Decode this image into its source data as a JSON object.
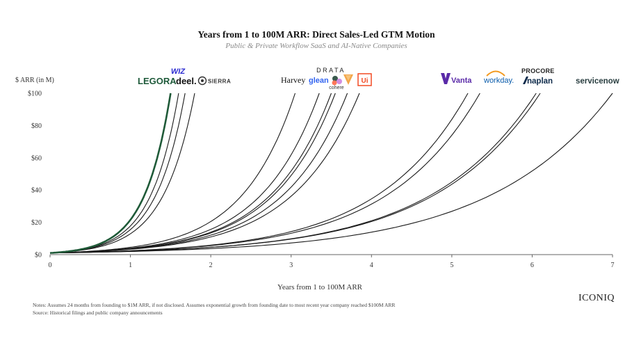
{
  "chart_data": {
    "type": "line",
    "title": "Years from 1 to 100M ARR: Direct Sales-Led GTM Motion",
    "subtitle": "Public & Private Workflow SaaS and AI-Native Companies",
    "xlabel": "Years from 1 to 100M ARR",
    "ylabel": "$ ARR (in M)",
    "xlim": [
      0,
      7
    ],
    "ylim": [
      0,
      100
    ],
    "x_ticks": [
      "0",
      "1",
      "2",
      "3",
      "4",
      "5",
      "6",
      "7"
    ],
    "y_ticks": [
      "$0",
      "$20",
      "$40",
      "$60",
      "$80",
      "$100"
    ],
    "start_value": 1,
    "series": [
      {
        "name": "Wiz",
        "years_to_100m": 1.5,
        "highlight": true
      },
      {
        "name": "Legora",
        "years_to_100m": 1.6
      },
      {
        "name": "Deel",
        "years_to_100m": 1.68
      },
      {
        "name": "Sierra",
        "years_to_100m": 1.8
      },
      {
        "name": "Harvey",
        "years_to_100m": 3.05
      },
      {
        "name": "Glean",
        "years_to_100m": 3.35
      },
      {
        "name": "Drata",
        "years_to_100m": 3.5
      },
      {
        "name": "Cohere",
        "years_to_100m": 3.55
      },
      {
        "name": "Vercel",
        "years_to_100m": 3.7
      },
      {
        "name": "UiPath",
        "years_to_100m": 3.85
      },
      {
        "name": "Vanta",
        "years_to_100m": 5.2
      },
      {
        "name": "Workday",
        "years_to_100m": 5.35
      },
      {
        "name": "Procore",
        "years_to_100m": 6.05
      },
      {
        "name": "Anaplan",
        "years_to_100m": 6.1
      },
      {
        "name": "ServiceNow",
        "years_to_100m": 7.0
      }
    ],
    "highlight_color": "#1f5a38",
    "line_color": "#1a1a1a"
  },
  "logos": {
    "wiz": "WIZ",
    "legora": "LEGORA",
    "deel": "deel.",
    "sierra": "SIERRA",
    "harvey": "Harvey",
    "drata": "DRATA",
    "glean": "glean",
    "cohere": "cohere",
    "uipath": "Ui",
    "vanta": "Vanta",
    "workday": "workday.",
    "procore": "PROCORE",
    "anaplan": "Anaplan",
    "servicenow": "servicenow"
  },
  "notes": {
    "line1": "Notes: Assumes 24 months from founding to $1M ARR, if not disclosed. Assumes exponential growth from founding date to most recent year company reached $100M ARR",
    "line2": "Source: Historical filings and public company announcements"
  },
  "brand": "ICONIQ",
  "colors": {
    "wiz": "#2b2bd1",
    "legora": "#1e5a3a",
    "sierra": "#444444",
    "glean": "#3264f0",
    "vercel_orange": "#f3a64a",
    "uipath": "#f24a24",
    "vanta": "#5a2aa8",
    "workday_blue": "#0a5cab",
    "workday_orange": "#f39a1f",
    "procore": "#222222",
    "anaplan": "#0d2a4a",
    "servicenow": "#293e40"
  }
}
